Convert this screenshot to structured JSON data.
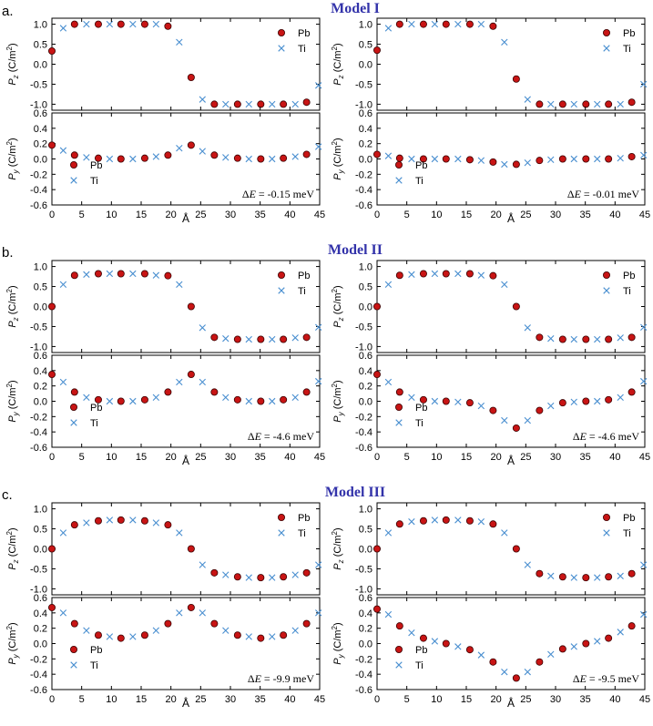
{
  "legend": {
    "pb": "Pb",
    "ti": "Ti"
  },
  "colors": {
    "pb_fill": "#c81414",
    "pb_stroke": "#3a0000",
    "ti": "#4a8fd0",
    "title": "#3333aa",
    "frame": "#000000"
  },
  "x_axis": {
    "label": "Å",
    "range": [
      0,
      45
    ],
    "ticks": [
      "0",
      "5",
      "10",
      "15",
      "20",
      "25",
      "30",
      "35",
      "40",
      "45"
    ]
  },
  "pz_axis": {
    "label_main": "P",
    "label_sub": "z",
    "label_unit": " (C/m",
    "label_sup": "2",
    "label_close": ")",
    "range": [
      -1.15,
      1.15
    ],
    "ticks": [
      "1.0",
      "0.5",
      "0.0",
      "-0.5",
      "-1.0"
    ]
  },
  "py_axis": {
    "label_main": "P",
    "label_sub": "y",
    "label_unit": " (C/m",
    "label_sup": "2",
    "label_close": ")",
    "range": [
      -0.6,
      0.6
    ],
    "ticks": [
      "0.6",
      "0.4",
      "0.2",
      "0.0",
      "-0.2",
      "-0.4",
      "-0.6"
    ]
  },
  "models": [
    {
      "panel_letter": "a.",
      "title": "Model I"
    },
    {
      "panel_letter": "b.",
      "title": "Model II"
    },
    {
      "panel_letter": "c.",
      "title": "Model III"
    }
  ],
  "chart_data": [
    {
      "type": "scatter",
      "model": "Model I",
      "column": "left",
      "quantity": "Pz",
      "series": [
        {
          "name": "Pb",
          "x": [
            0,
            3.8,
            7.8,
            11.6,
            15.6,
            19.5,
            23.4,
            27.3,
            31.2,
            35.1,
            38.9,
            42.8
          ],
          "y": [
            0.33,
            1.0,
            1.0,
            1.0,
            1.0,
            0.95,
            -0.33,
            -1.0,
            -1.0,
            -1.0,
            -1.0,
            -0.95
          ]
        },
        {
          "name": "Ti",
          "x": [
            1.9,
            5.8,
            9.7,
            13.6,
            17.5,
            21.4,
            25.3,
            29.2,
            33.1,
            37.0,
            40.9,
            44.8
          ],
          "y": [
            0.9,
            1.0,
            1.0,
            1.0,
            1.0,
            0.55,
            -0.88,
            -1.0,
            -1.0,
            -1.0,
            -1.0,
            -0.53
          ]
        }
      ]
    },
    {
      "type": "scatter",
      "model": "Model I",
      "column": "left",
      "quantity": "Py",
      "delta_e": "-0.15 meV",
      "series": [
        {
          "name": "Pb",
          "x": [
            0,
            3.8,
            7.8,
            11.6,
            15.6,
            19.5,
            23.4,
            27.3,
            31.2,
            35.1,
            38.9,
            42.8
          ],
          "y": [
            0.18,
            0.05,
            0.01,
            0.0,
            0.01,
            0.05,
            0.18,
            0.05,
            0.01,
            0.0,
            0.01,
            0.06
          ]
        },
        {
          "name": "Ti",
          "x": [
            1.9,
            5.8,
            9.7,
            13.6,
            17.5,
            21.4,
            25.3,
            29.2,
            33.1,
            37.0,
            40.9,
            44.8
          ],
          "y": [
            0.11,
            0.02,
            0.0,
            0.0,
            0.03,
            0.14,
            0.1,
            0.02,
            0.0,
            0.0,
            0.03,
            0.16
          ]
        }
      ]
    },
    {
      "type": "scatter",
      "model": "Model I",
      "column": "right",
      "quantity": "Pz",
      "series": [
        {
          "name": "Pb",
          "x": [
            0,
            3.8,
            7.8,
            11.6,
            15.6,
            19.5,
            23.4,
            27.3,
            31.2,
            35.1,
            38.9,
            42.8
          ],
          "y": [
            0.35,
            1.0,
            1.0,
            1.0,
            1.0,
            0.95,
            -0.37,
            -1.0,
            -1.0,
            -1.0,
            -1.0,
            -0.95
          ]
        },
        {
          "name": "Ti",
          "x": [
            1.9,
            5.8,
            9.7,
            13.6,
            17.5,
            21.4,
            25.3,
            29.2,
            33.1,
            37.0,
            40.9,
            44.8
          ],
          "y": [
            0.9,
            1.0,
            1.0,
            1.0,
            1.0,
            0.55,
            -0.88,
            -1.0,
            -1.0,
            -1.0,
            -1.0,
            -0.5
          ]
        }
      ]
    },
    {
      "type": "scatter",
      "model": "Model I",
      "column": "right",
      "quantity": "Py",
      "delta_e": "-0.01 meV",
      "series": [
        {
          "name": "Pb",
          "x": [
            0,
            3.8,
            7.8,
            11.6,
            15.6,
            19.5,
            23.4,
            27.3,
            31.2,
            35.1,
            38.9,
            42.8
          ],
          "y": [
            0.06,
            0.01,
            0.0,
            0.0,
            -0.01,
            -0.04,
            -0.07,
            -0.02,
            0.0,
            0.0,
            0.0,
            0.03
          ]
        },
        {
          "name": "Ti",
          "x": [
            1.9,
            5.8,
            9.7,
            13.6,
            17.5,
            21.4,
            25.3,
            29.2,
            33.1,
            37.0,
            40.9,
            44.8
          ],
          "y": [
            0.04,
            0.0,
            0.0,
            0.0,
            -0.02,
            -0.07,
            -0.05,
            -0.01,
            0.0,
            0.0,
            0.01,
            0.05
          ]
        }
      ]
    },
    {
      "type": "scatter",
      "model": "Model II",
      "column": "left",
      "quantity": "Pz",
      "series": [
        {
          "name": "Pb",
          "x": [
            0,
            3.8,
            7.8,
            11.6,
            15.6,
            19.5,
            23.4,
            27.3,
            31.2,
            35.1,
            38.9,
            42.8
          ],
          "y": [
            0.0,
            0.78,
            0.82,
            0.82,
            0.82,
            0.77,
            0.0,
            -0.77,
            -0.82,
            -0.82,
            -0.82,
            -0.77
          ]
        },
        {
          "name": "Ti",
          "x": [
            1.9,
            5.8,
            9.7,
            13.6,
            17.5,
            21.4,
            25.3,
            29.2,
            33.1,
            37.0,
            40.9,
            44.8
          ],
          "y": [
            0.55,
            0.8,
            0.82,
            0.82,
            0.78,
            0.55,
            -0.53,
            -0.8,
            -0.82,
            -0.82,
            -0.78,
            -0.52
          ]
        }
      ]
    },
    {
      "type": "scatter",
      "model": "Model II",
      "column": "left",
      "quantity": "Py",
      "delta_e": "-4.6 meV",
      "series": [
        {
          "name": "Pb",
          "x": [
            0,
            3.8,
            7.8,
            11.6,
            15.6,
            19.5,
            23.4,
            27.3,
            31.2,
            35.1,
            38.9,
            42.8
          ],
          "y": [
            0.35,
            0.12,
            0.02,
            0.0,
            0.02,
            0.12,
            0.35,
            0.12,
            0.02,
            0.0,
            0.02,
            0.12
          ]
        },
        {
          "name": "Ti",
          "x": [
            1.9,
            5.8,
            9.7,
            13.6,
            17.5,
            21.4,
            25.3,
            29.2,
            33.1,
            37.0,
            40.9,
            44.8
          ],
          "y": [
            0.25,
            0.05,
            0.0,
            0.0,
            0.05,
            0.25,
            0.25,
            0.05,
            0.0,
            0.0,
            0.05,
            0.26
          ]
        }
      ]
    },
    {
      "type": "scatter",
      "model": "Model II",
      "column": "right",
      "quantity": "Pz",
      "series": [
        {
          "name": "Pb",
          "x": [
            0,
            3.8,
            7.8,
            11.6,
            15.6,
            19.5,
            23.4,
            27.3,
            31.2,
            35.1,
            38.9,
            42.8
          ],
          "y": [
            0.0,
            0.78,
            0.82,
            0.82,
            0.82,
            0.77,
            0.0,
            -0.77,
            -0.82,
            -0.82,
            -0.82,
            -0.77
          ]
        },
        {
          "name": "Ti",
          "x": [
            1.9,
            5.8,
            9.7,
            13.6,
            17.5,
            21.4,
            25.3,
            29.2,
            33.1,
            37.0,
            40.9,
            44.8
          ],
          "y": [
            0.55,
            0.8,
            0.82,
            0.82,
            0.78,
            0.55,
            -0.53,
            -0.8,
            -0.82,
            -0.82,
            -0.78,
            -0.52
          ]
        }
      ]
    },
    {
      "type": "scatter",
      "model": "Model II",
      "column": "right",
      "quantity": "Py",
      "delta_e": "-4.6 meV",
      "series": [
        {
          "name": "Pb",
          "x": [
            0,
            3.8,
            7.8,
            11.6,
            15.6,
            19.5,
            23.4,
            27.3,
            31.2,
            35.1,
            38.9,
            42.8
          ],
          "y": [
            0.35,
            0.12,
            0.02,
            0.0,
            -0.02,
            -0.12,
            -0.35,
            -0.12,
            -0.02,
            0.0,
            0.02,
            0.12
          ]
        },
        {
          "name": "Ti",
          "x": [
            1.9,
            5.8,
            9.7,
            13.6,
            17.5,
            21.4,
            25.3,
            29.2,
            33.1,
            37.0,
            40.9,
            44.8
          ],
          "y": [
            0.25,
            0.05,
            0.0,
            -0.01,
            -0.06,
            -0.25,
            -0.25,
            -0.06,
            -0.01,
            0.0,
            0.05,
            0.26
          ]
        }
      ]
    },
    {
      "type": "scatter",
      "model": "Model III",
      "column": "left",
      "quantity": "Pz",
      "series": [
        {
          "name": "Pb",
          "x": [
            0,
            3.8,
            7.8,
            11.6,
            15.6,
            19.5,
            23.4,
            27.3,
            31.2,
            35.1,
            38.9,
            42.8
          ],
          "y": [
            0.0,
            0.6,
            0.7,
            0.72,
            0.7,
            0.6,
            0.0,
            -0.6,
            -0.7,
            -0.72,
            -0.7,
            -0.6
          ]
        },
        {
          "name": "Ti",
          "x": [
            1.9,
            5.8,
            9.7,
            13.6,
            17.5,
            21.4,
            25.3,
            29.2,
            33.1,
            37.0,
            40.9,
            44.8
          ],
          "y": [
            0.4,
            0.65,
            0.72,
            0.72,
            0.65,
            0.4,
            -0.4,
            -0.65,
            -0.72,
            -0.72,
            -0.65,
            -0.4
          ]
        }
      ]
    },
    {
      "type": "scatter",
      "model": "Model III",
      "column": "left",
      "quantity": "Py",
      "delta_e": "-9.9 meV",
      "series": [
        {
          "name": "Pb",
          "x": [
            0,
            3.8,
            7.8,
            11.6,
            15.6,
            19.5,
            23.4,
            27.3,
            31.2,
            35.1,
            38.9,
            42.8
          ],
          "y": [
            0.47,
            0.26,
            0.11,
            0.07,
            0.11,
            0.26,
            0.47,
            0.26,
            0.11,
            0.07,
            0.11,
            0.26
          ]
        },
        {
          "name": "Ti",
          "x": [
            1.9,
            5.8,
            9.7,
            13.6,
            17.5,
            21.4,
            25.3,
            29.2,
            33.1,
            37.0,
            40.9,
            44.8
          ],
          "y": [
            0.4,
            0.17,
            0.09,
            0.09,
            0.17,
            0.4,
            0.4,
            0.17,
            0.09,
            0.09,
            0.17,
            0.4
          ]
        }
      ]
    },
    {
      "type": "scatter",
      "model": "Model III",
      "column": "right",
      "quantity": "Pz",
      "series": [
        {
          "name": "Pb",
          "x": [
            0,
            3.8,
            7.8,
            11.6,
            15.6,
            19.5,
            23.4,
            27.3,
            31.2,
            35.1,
            38.9,
            42.8
          ],
          "y": [
            0.0,
            0.62,
            0.7,
            0.72,
            0.7,
            0.62,
            0.0,
            -0.62,
            -0.7,
            -0.72,
            -0.7,
            -0.62
          ]
        },
        {
          "name": "Ti",
          "x": [
            1.9,
            5.8,
            9.7,
            13.6,
            17.5,
            21.4,
            25.3,
            29.2,
            33.1,
            37.0,
            40.9,
            44.8
          ],
          "y": [
            0.4,
            0.68,
            0.72,
            0.72,
            0.68,
            0.4,
            -0.4,
            -0.68,
            -0.72,
            -0.72,
            -0.68,
            -0.4
          ]
        }
      ]
    },
    {
      "type": "scatter",
      "model": "Model III",
      "column": "right",
      "quantity": "Py",
      "delta_e": "-9.5 meV",
      "series": [
        {
          "name": "Pb",
          "x": [
            0,
            3.8,
            7.8,
            11.6,
            15.6,
            19.5,
            23.4,
            27.3,
            31.2,
            35.1,
            38.9,
            42.8
          ],
          "y": [
            0.45,
            0.23,
            0.07,
            0.0,
            -0.08,
            -0.24,
            -0.45,
            -0.24,
            -0.07,
            0.0,
            0.07,
            0.23
          ]
        },
        {
          "name": "Ti",
          "x": [
            1.9,
            5.8,
            9.7,
            13.6,
            17.5,
            21.4,
            25.3,
            29.2,
            33.1,
            37.0,
            40.9,
            44.8
          ],
          "y": [
            0.38,
            0.14,
            0.03,
            -0.04,
            -0.15,
            -0.37,
            -0.37,
            -0.14,
            -0.04,
            0.03,
            0.15,
            0.38
          ]
        }
      ]
    }
  ]
}
